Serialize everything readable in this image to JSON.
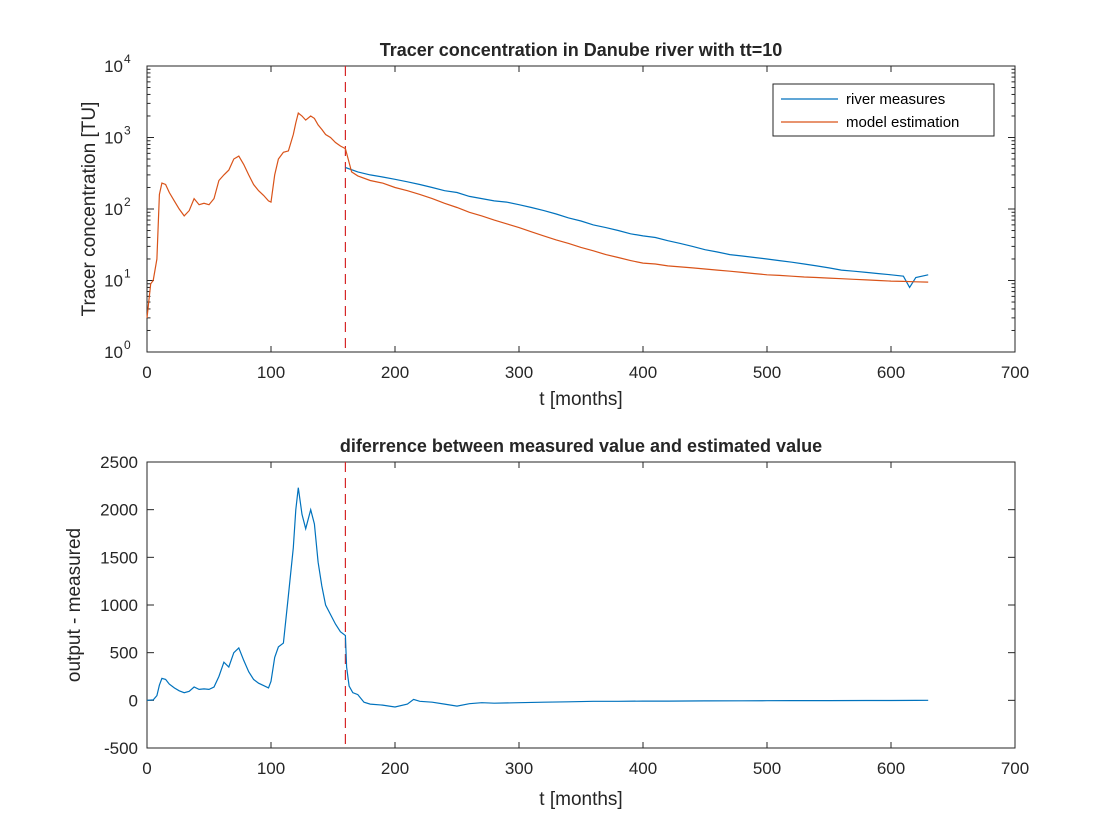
{
  "colors": {
    "river_measures": "#0072bd",
    "model_estimation": "#d95319",
    "marker": "#d62728",
    "axes": "#262626",
    "background": "#ffffff"
  },
  "chart_data": [
    {
      "type": "line",
      "title": "Tracer concentration in Danube river with tt=10",
      "xlabel": "t [months]",
      "ylabel": "Tracer concentration [TU]",
      "yscale": "log",
      "xlim": [
        0,
        700
      ],
      "ylim": [
        1,
        10000
      ],
      "xticks": [
        "0",
        "100",
        "200",
        "300",
        "400",
        "500",
        "600",
        "700"
      ],
      "yticks": [
        {
          "base": "10",
          "exp": "0"
        },
        {
          "base": "10",
          "exp": "1"
        },
        {
          "base": "10",
          "exp": "2"
        },
        {
          "base": "10",
          "exp": "3"
        },
        {
          "base": "10",
          "exp": "4"
        }
      ],
      "grid": false,
      "legend_position": "top-right",
      "vertical_marker_x": 160,
      "series": [
        {
          "name": "river measures",
          "x": [
            160,
            170,
            180,
            190,
            200,
            210,
            220,
            230,
            240,
            250,
            260,
            270,
            280,
            290,
            300,
            310,
            320,
            330,
            340,
            350,
            360,
            370,
            380,
            390,
            400,
            410,
            420,
            430,
            440,
            450,
            460,
            470,
            480,
            490,
            500,
            510,
            520,
            530,
            540,
            550,
            560,
            570,
            580,
            590,
            600,
            610,
            615,
            620,
            630
          ],
          "y": [
            380,
            330,
            300,
            280,
            260,
            240,
            220,
            200,
            180,
            170,
            150,
            140,
            130,
            125,
            115,
            105,
            95,
            85,
            75,
            68,
            60,
            55,
            50,
            45,
            42,
            40,
            36,
            33,
            30,
            27,
            25,
            23,
            22,
            21,
            20,
            19,
            18,
            17,
            16,
            15,
            14,
            13.5,
            13,
            12.5,
            12,
            11.5,
            8,
            11,
            12
          ]
        },
        {
          "name": "model estimation",
          "x": [
            0,
            3,
            5,
            8,
            10,
            12,
            15,
            18,
            22,
            26,
            30,
            34,
            38,
            42,
            46,
            50,
            54,
            58,
            62,
            66,
            70,
            74,
            78,
            82,
            86,
            90,
            94,
            98,
            100,
            103,
            106,
            110,
            114,
            118,
            120,
            122,
            125,
            128,
            132,
            135,
            138,
            141,
            144,
            148,
            152,
            156,
            160,
            165,
            170,
            180,
            190,
            200,
            210,
            220,
            230,
            240,
            250,
            260,
            270,
            280,
            290,
            300,
            310,
            320,
            330,
            340,
            350,
            360,
            370,
            380,
            390,
            400,
            410,
            420,
            430,
            440,
            450,
            460,
            470,
            480,
            490,
            500,
            510,
            520,
            530,
            540,
            550,
            560,
            570,
            580,
            590,
            600,
            610,
            620,
            630
          ],
          "y": [
            3,
            9,
            10,
            20,
            160,
            230,
            220,
            170,
            130,
            100,
            80,
            95,
            140,
            115,
            120,
            115,
            140,
            250,
            300,
            350,
            500,
            550,
            420,
            300,
            220,
            180,
            155,
            130,
            125,
            300,
            500,
            620,
            650,
            1100,
            1600,
            2200,
            2000,
            1750,
            2000,
            1850,
            1500,
            1300,
            1100,
            1000,
            850,
            760,
            700,
            330,
            290,
            250,
            230,
            200,
            180,
            160,
            140,
            120,
            105,
            90,
            80,
            70,
            62,
            55,
            48,
            42,
            37,
            33,
            29,
            26,
            23,
            21,
            19,
            17.5,
            17,
            16,
            15.5,
            15,
            14.5,
            14,
            13.5,
            13,
            12.5,
            12,
            11.8,
            11.5,
            11.2,
            11,
            10.8,
            10.6,
            10.4,
            10.2,
            10,
            9.8,
            9.7,
            9.6,
            9.5
          ]
        }
      ]
    },
    {
      "type": "line",
      "title": "diferrence between measured value and estimated value",
      "xlabel": "t [months]",
      "ylabel": "output - measured",
      "xlim": [
        0,
        700
      ],
      "ylim": [
        -500,
        2500
      ],
      "xticks": [
        "0",
        "100",
        "200",
        "300",
        "400",
        "500",
        "600",
        "700"
      ],
      "yticks": [
        "-500",
        "0",
        "500",
        "1000",
        "1500",
        "2000",
        "2500"
      ],
      "grid": false,
      "vertical_marker_x": 160,
      "series": [
        {
          "x": [
            0,
            5,
            8,
            10,
            12,
            15,
            18,
            22,
            26,
            30,
            34,
            38,
            42,
            46,
            50,
            54,
            58,
            62,
            66,
            70,
            74,
            78,
            82,
            86,
            90,
            94,
            98,
            100,
            103,
            106,
            110,
            114,
            118,
            120,
            122,
            125,
            128,
            132,
            135,
            138,
            141,
            144,
            148,
            152,
            156,
            160,
            161,
            163,
            166,
            170,
            175,
            180,
            190,
            200,
            210,
            215,
            220,
            230,
            240,
            250,
            260,
            270,
            280,
            300,
            320,
            340,
            360,
            380,
            400,
            420,
            450,
            480,
            500,
            520,
            550,
            580,
            600,
            620,
            630
          ],
          "y": [
            0,
            5,
            50,
            160,
            230,
            220,
            170,
            130,
            100,
            80,
            95,
            140,
            115,
            120,
            115,
            140,
            250,
            400,
            350,
            500,
            550,
            420,
            300,
            220,
            180,
            155,
            130,
            200,
            450,
            560,
            600,
            1100,
            1600,
            2000,
            2230,
            1950,
            1800,
            2000,
            1850,
            1450,
            1200,
            1000,
            900,
            800,
            720,
            680,
            350,
            150,
            80,
            60,
            -20,
            -40,
            -50,
            -70,
            -40,
            10,
            -10,
            -20,
            -40,
            -60,
            -35,
            -25,
            -30,
            -25,
            -20,
            -15,
            -10,
            -10,
            -8,
            -8,
            -6,
            -5,
            -4,
            -3,
            -3,
            -2,
            -2,
            -1,
            0
          ]
        }
      ]
    }
  ]
}
